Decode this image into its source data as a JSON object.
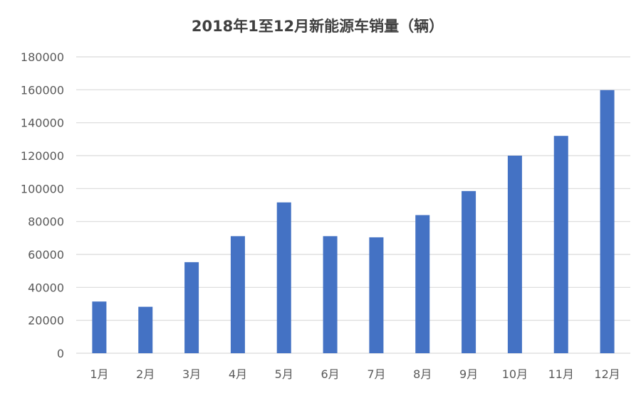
{
  "chart_data": {
    "type": "bar",
    "title": "2018年1至12月新能源车销量（辆）",
    "xlabel": "",
    "ylabel": "",
    "ylim": [
      0,
      180000
    ],
    "yticks": [
      "0",
      "20000",
      "40000",
      "60000",
      "80000",
      "100000",
      "120000",
      "140000",
      "160000",
      "180000"
    ],
    "grid": true,
    "legend": "none",
    "categories": [
      "1月",
      "2月",
      "3月",
      "4月",
      "5月",
      "6月",
      "7月",
      "8月",
      "9月",
      "10月",
      "11月",
      "12月"
    ],
    "values": [
      31400,
      28200,
      55300,
      71100,
      91600,
      71100,
      70400,
      83900,
      98500,
      120000,
      132000,
      159800
    ],
    "color": "#4472c4"
  }
}
